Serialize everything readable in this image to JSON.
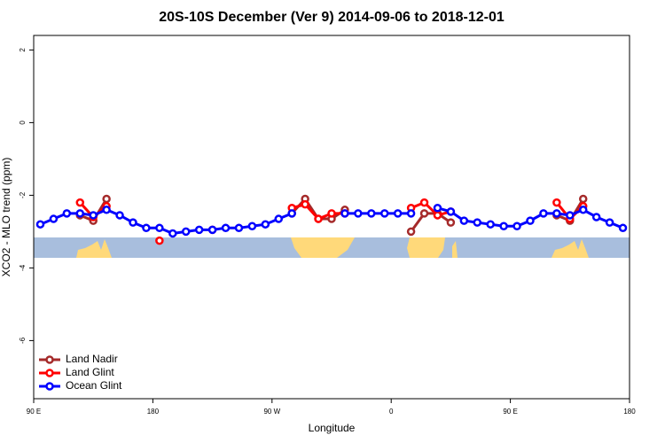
{
  "chart_data": {
    "type": "line",
    "title": "20S-10S December (Ver 9)   2014-09-06 to 2018-12-01",
    "x_label": "Longitude",
    "y_label": "XCO2 - MLO trend (ppm)",
    "x": [
      95,
      105,
      115,
      125,
      135,
      145,
      155,
      165,
      175,
      185,
      195,
      205,
      215,
      225,
      235,
      245,
      255,
      265,
      275,
      285,
      295,
      305,
      315,
      325,
      335,
      345,
      355,
      365,
      375,
      385,
      395,
      405,
      415,
      425,
      435,
      445,
      455,
      465,
      475,
      485,
      495,
      505,
      515,
      525,
      535
    ],
    "series": [
      {
        "name": "Land Nadir",
        "color": "#a52a2a",
        "values": [
          null,
          null,
          null,
          -2.55,
          -2.7,
          -2.1,
          null,
          null,
          null,
          null,
          null,
          null,
          null,
          null,
          null,
          null,
          null,
          null,
          null,
          -2.5,
          -2.1,
          -2.65,
          -2.65,
          -2.4,
          null,
          null,
          null,
          null,
          -3.0,
          -2.5,
          -2.5,
          -2.75,
          null,
          null,
          null,
          null,
          null,
          null,
          null,
          -2.55,
          -2.7,
          -2.1,
          null,
          null,
          null
        ]
      },
      {
        "name": "Land Glint",
        "color": "#ff0000",
        "values": [
          null,
          null,
          null,
          -2.2,
          -2.6,
          -2.3,
          null,
          null,
          null,
          -3.25,
          null,
          null,
          null,
          -2.95,
          null,
          null,
          null,
          null,
          null,
          -2.35,
          -2.25,
          -2.65,
          -2.5,
          -2.5,
          null,
          null,
          null,
          null,
          -2.35,
          -2.2,
          -2.55,
          -2.45,
          null,
          null,
          null,
          null,
          null,
          null,
          null,
          -2.2,
          -2.65,
          -2.3,
          null,
          null,
          null
        ]
      },
      {
        "name": "Ocean Glint",
        "color": "#0000ff",
        "values": [
          -2.8,
          -2.65,
          -2.5,
          -2.5,
          -2.55,
          -2.4,
          -2.55,
          -2.75,
          -2.9,
          -2.9,
          -3.05,
          -3.0,
          -2.95,
          -2.95,
          -2.9,
          -2.9,
          -2.85,
          -2.8,
          -2.65,
          -2.5,
          null,
          null,
          null,
          -2.5,
          -2.5,
          -2.5,
          -2.5,
          -2.5,
          -2.5,
          null,
          -2.35,
          -2.45,
          -2.7,
          -2.75,
          -2.8,
          -2.85,
          -2.85,
          -2.7,
          -2.5,
          -2.5,
          -2.55,
          -2.4,
          -2.6,
          -2.75,
          -2.9
        ]
      }
    ],
    "xlim": [
      90,
      540
    ],
    "xticks": [
      {
        "value": 90,
        "label": "90 E"
      },
      180,
      {
        "value": 270,
        "label": "90 W"
      },
      {
        "value": 360,
        "label": "0"
      },
      {
        "value": 450,
        "label": "90 E"
      },
      {
        "value": 540,
        "label": "180"
      }
    ],
    "ylim": [
      -7.6,
      2.4
    ],
    "yticks": [
      2,
      0,
      -2,
      -4,
      -6
    ],
    "legend": "bottom-left"
  }
}
